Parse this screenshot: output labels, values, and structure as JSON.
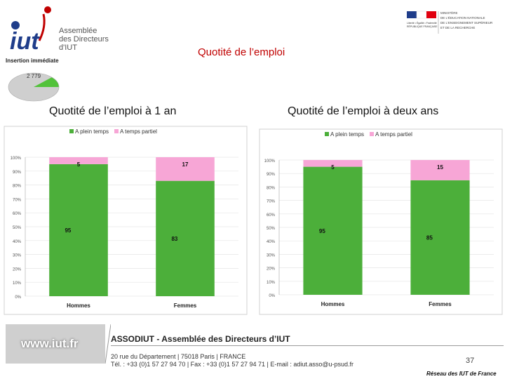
{
  "header": {
    "logo_text_lines": [
      "Assemblée",
      "des Directeurs",
      "d'IUT"
    ],
    "logo_subtitle": "Insertion immédiate",
    "pie_label": "2 779",
    "ministry_lines": [
      "MINISTÈRE",
      "DE L'ÉDUCATION NATIONALE",
      "DE L'ENSEIGNEMENT SUPÉRIEUR",
      "ET DE LA RECHERCHE"
    ],
    "main_title": "Quotité de l’emploi"
  },
  "subtitles": [
    "Quotité de l’emploi à 1 an",
    "Quotité de l’emploi à deux ans"
  ],
  "colors": {
    "plein": "#4caf3a",
    "partiel": "#f7a6d6",
    "title": "#c00000"
  },
  "chart_data": [
    {
      "type": "bar",
      "stacked": true,
      "title": "Quotité de l’emploi à 1 an",
      "categories": [
        "Hommes",
        "Femmes"
      ],
      "series": [
        {
          "name": "A plein temps",
          "values": [
            95,
            83
          ]
        },
        {
          "name": "A temps partiel",
          "values": [
            5,
            17
          ]
        }
      ],
      "ylim": [
        0,
        100
      ],
      "yticks": [
        "0%",
        "10%",
        "20%",
        "30%",
        "40%",
        "50%",
        "60%",
        "70%",
        "80%",
        "90%",
        "100%"
      ],
      "legend": "top"
    },
    {
      "type": "bar",
      "stacked": true,
      "title": "Quotité de l’emploi à deux ans",
      "categories": [
        "Hommes",
        "Femmes"
      ],
      "series": [
        {
          "name": "A plein temps",
          "values": [
            95,
            85
          ]
        },
        {
          "name": "A temps partiel",
          "values": [
            5,
            15
          ]
        }
      ],
      "ylim": [
        0,
        100
      ],
      "yticks": [
        "0%",
        "10%",
        "20%",
        "30%",
        "40%",
        "50%",
        "60%",
        "70%",
        "80%",
        "90%",
        "100%"
      ],
      "legend": "top"
    }
  ],
  "footer": {
    "url": "www.iut.fr",
    "title": "ASSODIUT - Assemblée des Directeurs d’IUT",
    "address_line1": "20 rue du Département | 75018 Paris | FRANCE",
    "address_line2": "Tél. : +33 (0)1 57 27 94 70 | Fax : +33 (0)1 57 27 94 71 | E-mail : adiut.asso@u-psud.fr",
    "page_number": "37",
    "network": "Réseau des IUT de France"
  }
}
